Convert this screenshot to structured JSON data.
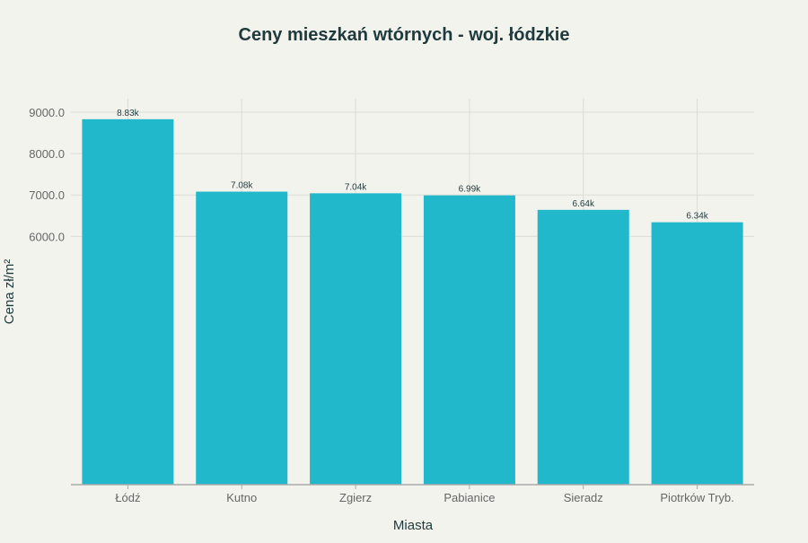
{
  "chart_data": {
    "type": "bar",
    "title": "Ceny mieszkań wtórnych - woj. łódzkie",
    "xlabel": "Miasta",
    "ylabel": "Cena zł/m²",
    "categories": [
      "Łódź",
      "Kutno",
      "Zgierz",
      "Pabianice",
      "Sieradz",
      "Piotrków Tryb."
    ],
    "values": [
      8830,
      7080,
      7040,
      6990,
      6640,
      6340
    ],
    "data_labels": [
      "8.83k",
      "7.08k",
      "7.04k",
      "6.99k",
      "6.64k",
      "6.34k"
    ],
    "yticks": [
      6000,
      7000,
      8000,
      9000
    ],
    "ytick_labels": [
      "6000.0",
      "7000.0",
      "8000.0",
      "9000.0"
    ],
    "ylim": [
      0,
      9300
    ],
    "grid": true,
    "colors": {
      "bar": "#21b8cc",
      "background": "#f3f3ee",
      "title": "#1f3a3d"
    }
  }
}
